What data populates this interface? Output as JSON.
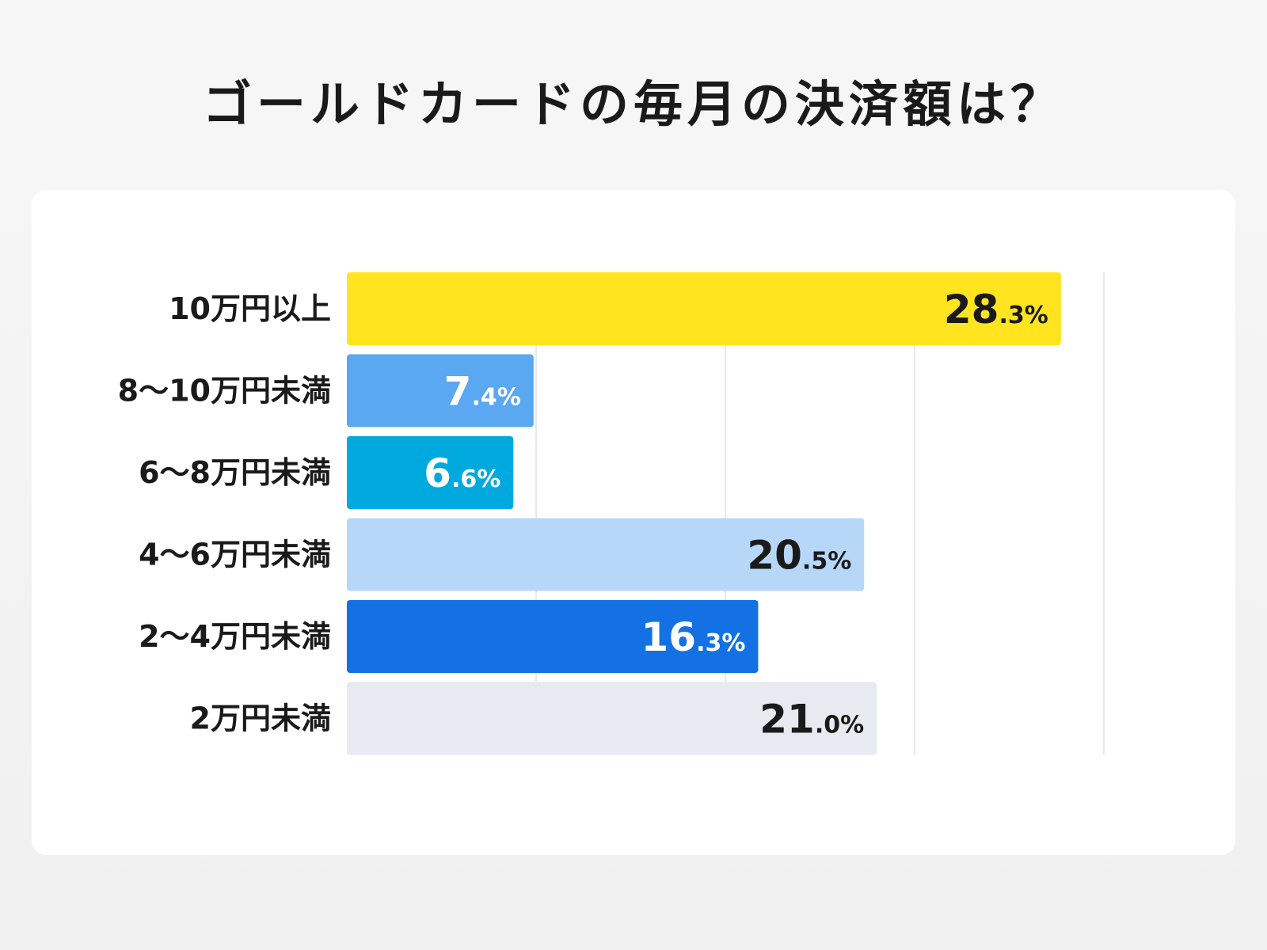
{
  "chart_data": {
    "type": "bar",
    "orientation": "horizontal",
    "title": "ゴールドカードの毎月の決済額は？",
    "categories": [
      "10万円以上",
      "8〜10万円未満",
      "6〜8万円未満",
      "4〜6万円未満",
      "2〜4万円未満",
      "2万円未満"
    ],
    "values": [
      28.3,
      7.4,
      6.6,
      20.5,
      16.3,
      21.0
    ],
    "value_labels": [
      {
        "int": "28",
        "dec": ".3%"
      },
      {
        "int": "7",
        "dec": ".4%"
      },
      {
        "int": "6",
        "dec": ".6%"
      },
      {
        "int": "20",
        "dec": ".5%"
      },
      {
        "int": "16",
        "dec": ".3%"
      },
      {
        "int": "21",
        "dec": ".0%"
      }
    ],
    "colors": [
      "#ffe41f",
      "#5aa7f2",
      "#00a9de",
      "#b7d7f8",
      "#1371e3",
      "#e7eaf0"
    ],
    "label_colors": [
      "#1a1a1a",
      "#ffffff",
      "#ffffff",
      "#1a1a1a",
      "#ffffff",
      "#1a1a1a"
    ],
    "xlim": [
      0,
      30
    ],
    "grid": true,
    "xlabel": "",
    "ylabel": ""
  }
}
